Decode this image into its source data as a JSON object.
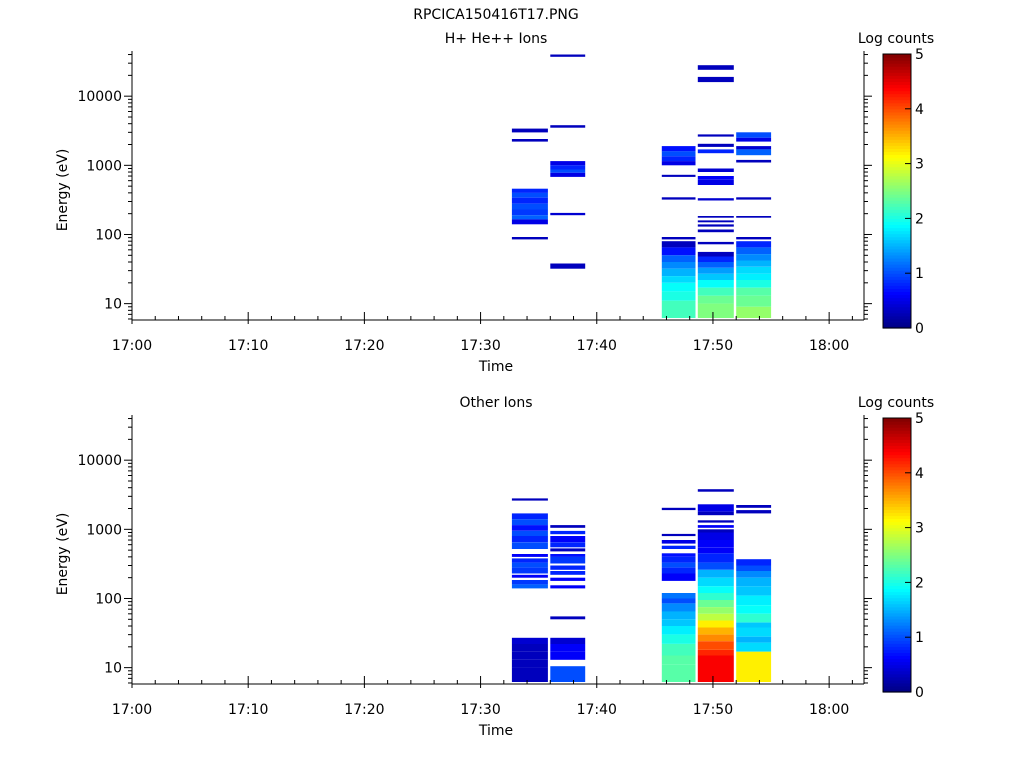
{
  "figure_title": "RPCICA150416T17.PNG",
  "colors": {
    "axis": "#000000",
    "background": "#ffffff"
  },
  "chart_data": [
    {
      "type": "heatmap",
      "title": "H+ He++ Ions",
      "xlabel": "Time",
      "ylabel": "Energy (eV)",
      "x_ticks": [
        "17:00",
        "17:10",
        "17:20",
        "17:30",
        "17:40",
        "17:50",
        "18:00"
      ],
      "x_range": [
        "17:00",
        "18:03"
      ],
      "y_scale": "log",
      "y_ticks": [
        "10",
        "100",
        "1000",
        "10000"
      ],
      "y_range": [
        5.8,
        45000
      ],
      "colorbar": {
        "label": "Log counts",
        "ticks": [
          "0",
          "1",
          "2",
          "3",
          "4",
          "5"
        ],
        "range": [
          0,
          5
        ],
        "colormap": "jet"
      },
      "columns": [
        {
          "t0": "17:32.7",
          "t1": "17:35.8",
          "cells": [
            [
              3000,
              3400,
              0.3
            ],
            [
              2200,
              2400,
              0.3
            ],
            [
              400,
              460,
              0.8
            ],
            [
              340,
              400,
              1.0
            ],
            [
              280,
              340,
              0.8
            ],
            [
              230,
              280,
              1.0
            ],
            [
              190,
              230,
              0.9
            ],
            [
              165,
              190,
              1.1
            ],
            [
              140,
              165,
              0.5
            ],
            [
              85,
              92,
              0.3
            ]
          ]
        },
        {
          "t0": "17:36",
          "t1": "17:39",
          "cells": [
            [
              37000,
              40000,
              0.3
            ],
            [
              3500,
              3800,
              0.3
            ],
            [
              1000,
              1150,
              0.5
            ],
            [
              870,
              1000,
              0.8
            ],
            [
              780,
              870,
              1.0
            ],
            [
              680,
              780,
              0.5
            ],
            [
              190,
              205,
              0.4
            ],
            [
              32,
              38,
              0.3
            ]
          ]
        },
        {
          "t0": "17:45.6",
          "t1": "17:48.5",
          "cells": [
            [
              1600,
              1900,
              0.7
            ],
            [
              1350,
              1600,
              1.0
            ],
            [
              1150,
              1350,
              0.8
            ],
            [
              1000,
              1150,
              0.5
            ],
            [
              680,
              730,
              0.3
            ],
            [
              320,
              345,
              0.3
            ],
            [
              85,
              92,
              0.3
            ],
            [
              65,
              80,
              0.3
            ],
            [
              50,
              65,
              0.7
            ],
            [
              40,
              50,
              1.1
            ],
            [
              32,
              40,
              1.3
            ],
            [
              25,
              32,
              1.5
            ],
            [
              20,
              25,
              1.7
            ],
            [
              15,
              20,
              1.9
            ],
            [
              11,
              15,
              2.0
            ],
            [
              6.2,
              11,
              2.2
            ]
          ]
        },
        {
          "t0": "17:48.7",
          "t1": "17:51.8",
          "cells": [
            [
              24000,
              28000,
              0.3
            ],
            [
              16000,
              19000,
              0.3
            ],
            [
              2600,
              2800,
              0.3
            ],
            [
              1850,
              2050,
              0.3
            ],
            [
              1500,
              1700,
              0.8
            ],
            [
              800,
              900,
              0.4
            ],
            [
              620,
              700,
              0.6
            ],
            [
              520,
              620,
              0.5
            ],
            [
              310,
              335,
              0.4
            ],
            [
              175,
              185,
              0.3
            ],
            [
              150,
              160,
              0.3
            ],
            [
              130,
              140,
              0.3
            ],
            [
              108,
              118,
              0.3
            ],
            [
              72,
              78,
              0.3
            ],
            [
              48,
              56,
              0.3
            ],
            [
              40,
              48,
              0.8
            ],
            [
              33,
              40,
              1.1
            ],
            [
              27,
              33,
              1.4
            ],
            [
              22,
              27,
              1.6
            ],
            [
              17,
              22,
              1.9
            ],
            [
              13,
              17,
              2.2
            ],
            [
              10,
              13,
              2.4
            ],
            [
              6.2,
              10,
              2.5
            ]
          ]
        },
        {
          "t0": "17:52",
          "t1": "17:55",
          "cells": [
            [
              2500,
              3000,
              1.0
            ],
            [
              2200,
              2500,
              0.5
            ],
            [
              1700,
              1900,
              0.4
            ],
            [
              1400,
              1700,
              1.1
            ],
            [
              1100,
              1200,
              0.3
            ],
            [
              320,
              345,
              0.3
            ],
            [
              175,
              185,
              0.3
            ],
            [
              85,
              92,
              0.3
            ],
            [
              65,
              80,
              0.8
            ],
            [
              52,
              65,
              1.1
            ],
            [
              42,
              52,
              1.3
            ],
            [
              34,
              42,
              1.5
            ],
            [
              27,
              34,
              1.7
            ],
            [
              22,
              27,
              1.8
            ],
            [
              17,
              22,
              2.0
            ],
            [
              13,
              17,
              2.3
            ],
            [
              9,
              13,
              2.4
            ],
            [
              6.2,
              9,
              2.6
            ]
          ]
        }
      ]
    },
    {
      "type": "heatmap",
      "title": "Other Ions",
      "xlabel": "Time",
      "ylabel": "Energy (eV)",
      "x_ticks": [
        "17:00",
        "17:10",
        "17:20",
        "17:30",
        "17:40",
        "17:50",
        "18:00"
      ],
      "x_range": [
        "17:00",
        "18:03"
      ],
      "y_scale": "log",
      "y_ticks": [
        "10",
        "100",
        "1000",
        "10000"
      ],
      "y_range": [
        5.8,
        45000
      ],
      "colorbar": {
        "label": "Log counts",
        "ticks": [
          "0",
          "1",
          "2",
          "3",
          "4",
          "5"
        ],
        "range": [
          0,
          5
        ],
        "colormap": "jet"
      },
      "columns": [
        {
          "t0": "17:32.7",
          "t1": "17:35.8",
          "cells": [
            [
              2600,
              2800,
              0.3
            ],
            [
              1400,
              1700,
              0.8
            ],
            [
              1150,
              1400,
              1.0
            ],
            [
              950,
              1150,
              0.7
            ],
            [
              800,
              950,
              1.0
            ],
            [
              650,
              800,
              0.8
            ],
            [
              520,
              650,
              1.0
            ],
            [
              400,
              440,
              0.6
            ],
            [
              330,
              380,
              0.8
            ],
            [
              280,
              330,
              1.0
            ],
            [
              230,
              280,
              0.9
            ],
            [
              200,
              220,
              0.6
            ],
            [
              160,
              185,
              0.9
            ],
            [
              140,
              160,
              1.1
            ],
            [
              22,
              27,
              0.4
            ],
            [
              17,
              22,
              0.3
            ],
            [
              13,
              17,
              0.3
            ],
            [
              10,
              13,
              0.3
            ],
            [
              6.2,
              10,
              0.3
            ]
          ]
        },
        {
          "t0": "17:36",
          "t1": "17:39",
          "cells": [
            [
              1050,
              1150,
              0.3
            ],
            [
              850,
              950,
              0.8
            ],
            [
              650,
              800,
              0.6
            ],
            [
              550,
              650,
              0.8
            ],
            [
              480,
              530,
              0.3
            ],
            [
              400,
              440,
              0.7
            ],
            [
              320,
              400,
              0.9
            ],
            [
              260,
              300,
              0.8
            ],
            [
              220,
              250,
              0.8
            ],
            [
              180,
              200,
              0.6
            ],
            [
              140,
              155,
              0.6
            ],
            [
              50,
              55,
              0.3
            ],
            [
              22,
              27,
              0.4
            ],
            [
              17,
              22,
              0.6
            ],
            [
              13,
              17,
              0.6
            ],
            [
              6.2,
              10.5,
              1.0
            ]
          ]
        },
        {
          "t0": "17:45.6",
          "t1": "17:48.5",
          "cells": [
            [
              1900,
              2050,
              0.3
            ],
            [
              800,
              860,
              0.3
            ],
            [
              620,
              700,
              0.5
            ],
            [
              520,
              580,
              0.8
            ],
            [
              400,
              450,
              0.7
            ],
            [
              330,
              400,
              0.8
            ],
            [
              280,
              330,
              1.0
            ],
            [
              230,
              280,
              0.8
            ],
            [
              180,
              230,
              0.6
            ],
            [
              100,
              120,
              1.2
            ],
            [
              85,
              100,
              1.0
            ],
            [
              65,
              85,
              1.3
            ],
            [
              50,
              65,
              1.5
            ],
            [
              40,
              50,
              1.6
            ],
            [
              30,
              40,
              1.8
            ],
            [
              22,
              30,
              2.0
            ],
            [
              15,
              22,
              2.2
            ],
            [
              11,
              15,
              2.3
            ],
            [
              6.2,
              11,
              2.3
            ]
          ]
        },
        {
          "t0": "17:48.7",
          "t1": "17:51.8",
          "cells": [
            [
              3500,
              3800,
              0.3
            ],
            [
              1800,
              2300,
              0.5
            ],
            [
              1600,
              1800,
              0.3
            ],
            [
              1250,
              1350,
              0.3
            ],
            [
              1050,
              1150,
              0.6
            ],
            [
              900,
              1000,
              0.3
            ],
            [
              700,
              900,
              0.5
            ],
            [
              550,
              700,
              0.6
            ],
            [
              450,
              550,
              0.6
            ],
            [
              330,
              450,
              0.8
            ],
            [
              260,
              330,
              1.0
            ],
            [
              200,
              260,
              1.5
            ],
            [
              150,
              200,
              1.7
            ],
            [
              120,
              150,
              1.9
            ],
            [
              95,
              120,
              2.1
            ],
            [
              75,
              95,
              2.4
            ],
            [
              60,
              75,
              2.6
            ],
            [
              48,
              60,
              2.8
            ],
            [
              38,
              48,
              3.2
            ],
            [
              30,
              38,
              3.5
            ],
            [
              24,
              30,
              3.7
            ],
            [
              18,
              24,
              4.0
            ],
            [
              15,
              18,
              4.2
            ],
            [
              6.2,
              15,
              4.4
            ]
          ]
        },
        {
          "t0": "17:52",
          "t1": "17:55",
          "cells": [
            [
              2050,
              2250,
              0.3
            ],
            [
              1700,
              1900,
              0.3
            ],
            [
              300,
              370,
              0.8
            ],
            [
              250,
              300,
              1.0
            ],
            [
              200,
              250,
              1.3
            ],
            [
              150,
              200,
              1.5
            ],
            [
              110,
              150,
              1.6
            ],
            [
              80,
              110,
              1.8
            ],
            [
              60,
              80,
              1.9
            ],
            [
              45,
              60,
              2.1
            ],
            [
              38,
              45,
              1.6
            ],
            [
              28,
              38,
              1.7
            ],
            [
              23,
              28,
              1.5
            ],
            [
              17,
              23,
              1.7
            ],
            [
              6.2,
              17,
              3.2
            ]
          ]
        }
      ]
    }
  ]
}
